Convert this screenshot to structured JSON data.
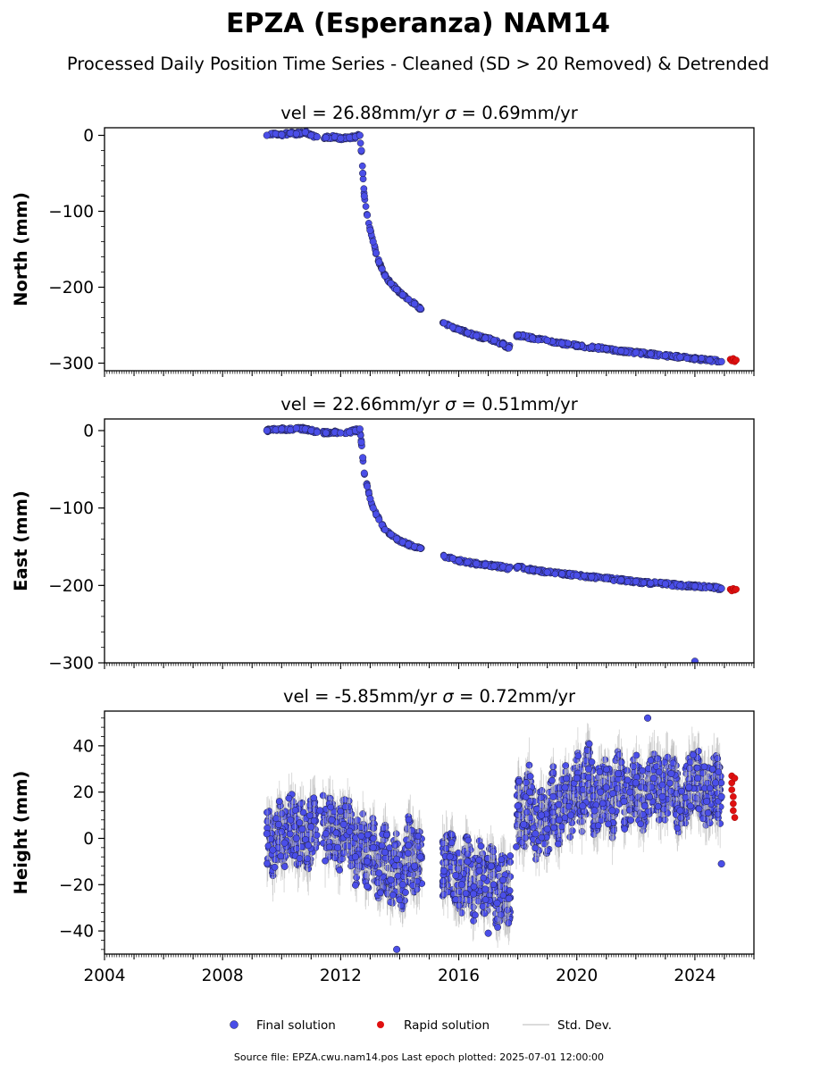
{
  "figure": {
    "title": "EPZA (Esperanza) NAM14",
    "subtitle": "Processed Daily Position Time Series - Cleaned (SD > 20 Removed) & Detrended",
    "source_note": "Source file: EPZA.cwu.nam14.pos  Last epoch plotted: 2025-07-01 12:00:00"
  },
  "legend": {
    "final": "Final solution",
    "rapid": "Rapid solution",
    "std": "Std. Dev."
  },
  "colors": {
    "final": "#4a4ee8",
    "final_edge": "#1a1a3a",
    "rapid": "#e01010",
    "std": "#bdbdbd"
  },
  "x_axis": {
    "range": [
      2004.0,
      2026.0
    ],
    "ticks": [
      2004,
      2008,
      2012,
      2016,
      2020,
      2024
    ],
    "tick_labels": [
      "2004",
      "2008",
      "2012",
      "2016",
      "2020",
      "2024"
    ],
    "shared": true
  },
  "chart_data": [
    {
      "type": "scatter",
      "panel": "north",
      "title_prefix": "vel = 26.88mm/yr   ",
      "sigma_symbol": "σ",
      "title_suffix": " = 0.69mm/yr",
      "ylabel": "North (mm)",
      "ylim": [
        -310,
        10
      ],
      "yticks": [
        0,
        -100,
        -200,
        -300
      ],
      "ytick_labels": [
        "0",
        "−100",
        "−200",
        "−300"
      ],
      "grid": false,
      "series": [
        {
          "name": "Final solution",
          "kind": "final",
          "x": [
            2009.5,
            2009.8,
            2010.0,
            2010.3,
            2010.5,
            2010.8,
            2011.0,
            2011.2,
            2011.5,
            2011.8,
            2012.0,
            2012.3,
            2012.5,
            2012.65,
            2012.7,
            2012.75,
            2012.8,
            2012.9,
            2013.0,
            2013.1,
            2013.2,
            2013.3,
            2013.4,
            2013.5,
            2013.7,
            2013.9,
            2014.1,
            2014.3,
            2014.5,
            2014.7,
            2015.5,
            2015.8,
            2016.0,
            2016.3,
            2016.6,
            2016.9,
            2017.2,
            2017.5,
            2017.7,
            2018.0,
            2018.5,
            2019.0,
            2019.5,
            2020.0,
            2020.5,
            2021.0,
            2021.5,
            2022.0,
            2022.5,
            2023.0,
            2023.5,
            2024.0,
            2024.5,
            2024.9
          ],
          "y": [
            0,
            2,
            1,
            3,
            2,
            4,
            0,
            -2,
            -3,
            -2,
            -4,
            -3,
            -2,
            0,
            -20,
            -50,
            -80,
            -105,
            -125,
            -140,
            -155,
            -167,
            -176,
            -185,
            -195,
            -203,
            -210,
            -216,
            -222,
            -228,
            -247,
            -253,
            -256,
            -260,
            -264,
            -267,
            -270,
            -275,
            -280,
            -263,
            -267,
            -270,
            -274,
            -277,
            -279,
            -281,
            -284,
            -286,
            -288,
            -290,
            -292,
            -294,
            -296,
            -298
          ]
        },
        {
          "name": "Rapid solution",
          "kind": "rapid",
          "x": [
            2025.2,
            2025.25,
            2025.3,
            2025.35,
            2025.4
          ],
          "y": [
            -295,
            -297,
            -294,
            -298,
            -296
          ]
        }
      ]
    },
    {
      "type": "scatter",
      "panel": "east",
      "title_prefix": "vel = 22.66mm/yr   ",
      "sigma_symbol": "σ",
      "title_suffix": " = 0.51mm/yr",
      "ylabel": "East (mm)",
      "ylim": [
        -300,
        15
      ],
      "yticks": [
        0,
        -100,
        -200,
        -300
      ],
      "ytick_labels": [
        "0",
        "−100",
        "−200",
        "−300"
      ],
      "grid": false,
      "series": [
        {
          "name": "Final solution",
          "kind": "final",
          "x": [
            2009.5,
            2009.8,
            2010.0,
            2010.3,
            2010.5,
            2010.8,
            2011.0,
            2011.2,
            2011.5,
            2011.8,
            2012.0,
            2012.3,
            2012.5,
            2012.65,
            2012.7,
            2012.75,
            2012.8,
            2012.9,
            2013.0,
            2013.1,
            2013.2,
            2013.3,
            2013.4,
            2013.5,
            2013.7,
            2013.9,
            2014.1,
            2014.3,
            2014.5,
            2014.7,
            2015.5,
            2015.8,
            2016.0,
            2016.3,
            2016.6,
            2016.9,
            2017.2,
            2017.5,
            2017.7,
            2018.0,
            2018.5,
            2019.0,
            2019.5,
            2020.0,
            2020.5,
            2021.0,
            2021.5,
            2022.0,
            2022.5,
            2023.0,
            2023.5,
            2024.0,
            2024.5,
            2024.9,
            2024.0
          ],
          "y": [
            0,
            1,
            2,
            1,
            3,
            2,
            0,
            -2,
            -3,
            -2,
            -3,
            -2,
            0,
            2,
            -15,
            -35,
            -55,
            -72,
            -88,
            -100,
            -108,
            -115,
            -122,
            -128,
            -134,
            -140,
            -144,
            -147,
            -150,
            -152,
            -162,
            -165,
            -168,
            -170,
            -172,
            -173,
            -175,
            -176,
            -178,
            -176,
            -180,
            -183,
            -185,
            -187,
            -189,
            -191,
            -193,
            -195,
            -197,
            -198,
            -200,
            -201,
            -202,
            -204,
            -298
          ]
        },
        {
          "name": "Rapid solution",
          "kind": "rapid",
          "x": [
            2025.2,
            2025.25,
            2025.3,
            2025.35,
            2025.4
          ],
          "y": [
            -205,
            -207,
            -204,
            -206,
            -205
          ]
        }
      ]
    },
    {
      "type": "scatter",
      "panel": "height",
      "title_prefix": "vel = -5.85mm/yr   ",
      "sigma_symbol": "σ",
      "title_suffix": " = 0.72mm/yr",
      "ylabel": "Height (mm)",
      "ylim": [
        -50,
        55
      ],
      "yticks": [
        40,
        20,
        0,
        -20,
        -40
      ],
      "ytick_labels": [
        "40",
        "20",
        "0",
        "−20",
        "−40"
      ],
      "grid": false,
      "series": [
        {
          "name": "Final solution",
          "kind": "final",
          "x": [
            2009.5,
            2009.7,
            2009.9,
            2010.1,
            2010.3,
            2010.5,
            2010.7,
            2010.9,
            2011.0,
            2011.3,
            2011.5,
            2011.7,
            2011.9,
            2012.1,
            2012.3,
            2012.5,
            2012.7,
            2012.9,
            2013.1,
            2013.3,
            2013.5,
            2013.7,
            2013.9,
            2014.1,
            2014.3,
            2014.5,
            2014.7,
            2015.5,
            2015.7,
            2015.9,
            2016.1,
            2016.3,
            2016.5,
            2016.7,
            2016.9,
            2017.1,
            2017.3,
            2017.5,
            2017.7,
            2018.0,
            2018.2,
            2018.4,
            2018.6,
            2018.8,
            2019.0,
            2019.2,
            2019.4,
            2019.6,
            2019.8,
            2020.0,
            2020.2,
            2020.4,
            2020.6,
            2020.8,
            2021.0,
            2021.2,
            2021.4,
            2021.6,
            2021.8,
            2022.0,
            2022.3,
            2022.6,
            2022.9,
            2023.2,
            2023.5,
            2023.8,
            2024.1,
            2024.4,
            2024.7,
            2024.9,
            2022.4,
            2024.9,
            2013.9,
            2017.0
          ],
          "y": [
            2,
            -5,
            6,
            -2,
            8,
            0,
            4,
            -3,
            5,
            12,
            2,
            8,
            -4,
            6,
            3,
            -8,
            1,
            -10,
            -4,
            -15,
            -6,
            -18,
            -9,
            -20,
            -3,
            -12,
            -8,
            -14,
            -8,
            -16,
            -20,
            -10,
            -24,
            -14,
            -22,
            -12,
            -28,
            -18,
            -26,
            14,
            6,
            20,
            2,
            10,
            4,
            18,
            8,
            22,
            10,
            26,
            14,
            30,
            12,
            20,
            22,
            12,
            28,
            16,
            20,
            24,
            14,
            26,
            18,
            28,
            12,
            22,
            26,
            16,
            24,
            18,
            52,
            -11,
            -48,
            -41
          ]
        },
        {
          "name": "Rapid solution",
          "kind": "rapid",
          "x": [
            2025.25,
            2025.25,
            2025.25,
            2025.3,
            2025.3,
            2025.3,
            2025.35,
            2025.35
          ],
          "y": [
            27,
            24,
            21,
            18,
            15,
            12,
            9,
            26
          ]
        }
      ]
    }
  ]
}
